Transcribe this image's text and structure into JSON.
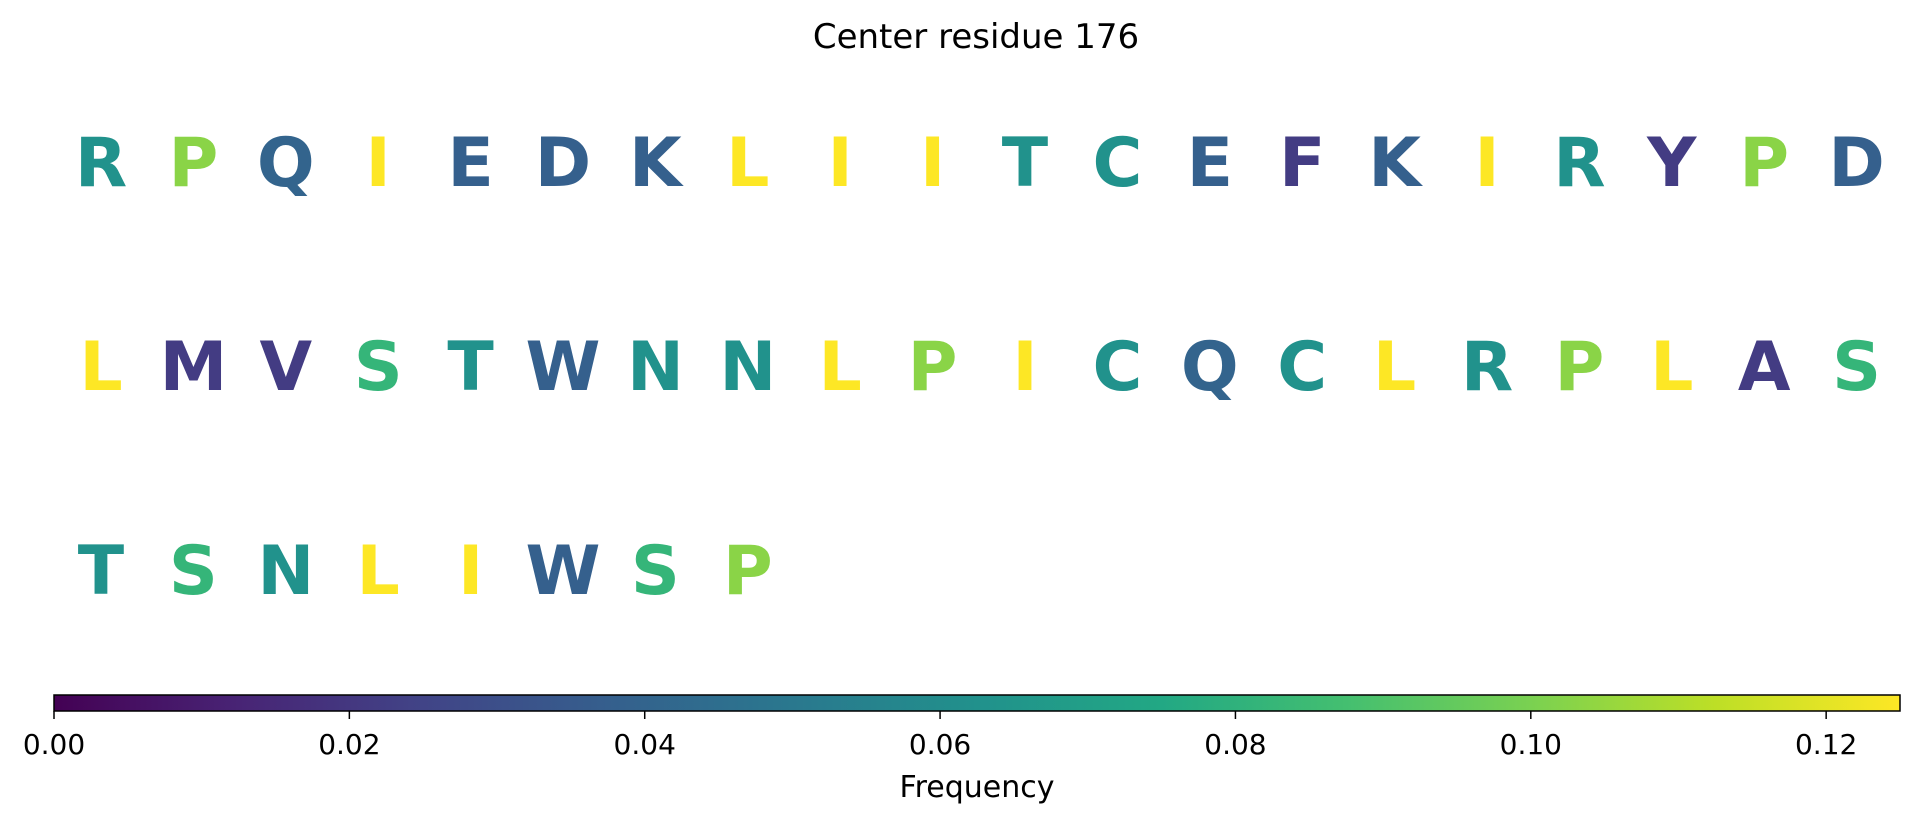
{
  "chart_data": {
    "type": "sequence-heatmap",
    "title": "Center residue 176",
    "colorbar": {
      "label": "Frequency",
      "colormap": "viridis",
      "range": [
        0,
        0.125
      ],
      "ticks": [
        0.0,
        0.02,
        0.04,
        0.06,
        0.08,
        0.1,
        0.12
      ],
      "tick_labels": [
        "0.00",
        "0.02",
        "0.04",
        "0.06",
        "0.08",
        "0.10",
        "0.12"
      ]
    },
    "letters_per_row": 20,
    "residues": [
      {
        "letter": "R",
        "value": 0.063
      },
      {
        "letter": "P",
        "value": 0.103
      },
      {
        "letter": "Q",
        "value": 0.04
      },
      {
        "letter": "I",
        "value": 0.125
      },
      {
        "letter": "E",
        "value": 0.038
      },
      {
        "letter": "D",
        "value": 0.038
      },
      {
        "letter": "K",
        "value": 0.038
      },
      {
        "letter": "L",
        "value": 0.125
      },
      {
        "letter": "I",
        "value": 0.125
      },
      {
        "letter": "I",
        "value": 0.125
      },
      {
        "letter": "T",
        "value": 0.063
      },
      {
        "letter": "C",
        "value": 0.063
      },
      {
        "letter": "E",
        "value": 0.038
      },
      {
        "letter": "F",
        "value": 0.022
      },
      {
        "letter": "K",
        "value": 0.038
      },
      {
        "letter": "I",
        "value": 0.125
      },
      {
        "letter": "R",
        "value": 0.063
      },
      {
        "letter": "Y",
        "value": 0.022
      },
      {
        "letter": "P",
        "value": 0.103
      },
      {
        "letter": "D",
        "value": 0.038
      },
      {
        "letter": "L",
        "value": 0.125
      },
      {
        "letter": "M",
        "value": 0.022
      },
      {
        "letter": "V",
        "value": 0.022
      },
      {
        "letter": "S",
        "value": 0.082
      },
      {
        "letter": "T",
        "value": 0.063
      },
      {
        "letter": "W",
        "value": 0.038
      },
      {
        "letter": "N",
        "value": 0.063
      },
      {
        "letter": "N",
        "value": 0.063
      },
      {
        "letter": "L",
        "value": 0.125
      },
      {
        "letter": "P",
        "value": 0.103
      },
      {
        "letter": "I",
        "value": 0.125
      },
      {
        "letter": "C",
        "value": 0.063
      },
      {
        "letter": "Q",
        "value": 0.04
      },
      {
        "letter": "C",
        "value": 0.063
      },
      {
        "letter": "L",
        "value": 0.125
      },
      {
        "letter": "R",
        "value": 0.063
      },
      {
        "letter": "P",
        "value": 0.103
      },
      {
        "letter": "L",
        "value": 0.125
      },
      {
        "letter": "A",
        "value": 0.022
      },
      {
        "letter": "S",
        "value": 0.082
      },
      {
        "letter": "T",
        "value": 0.063
      },
      {
        "letter": "S",
        "value": 0.082
      },
      {
        "letter": "N",
        "value": 0.063
      },
      {
        "letter": "L",
        "value": 0.125
      },
      {
        "letter": "I",
        "value": 0.125
      },
      {
        "letter": "W",
        "value": 0.038
      },
      {
        "letter": "S",
        "value": 0.082
      },
      {
        "letter": "P",
        "value": 0.103
      }
    ]
  }
}
